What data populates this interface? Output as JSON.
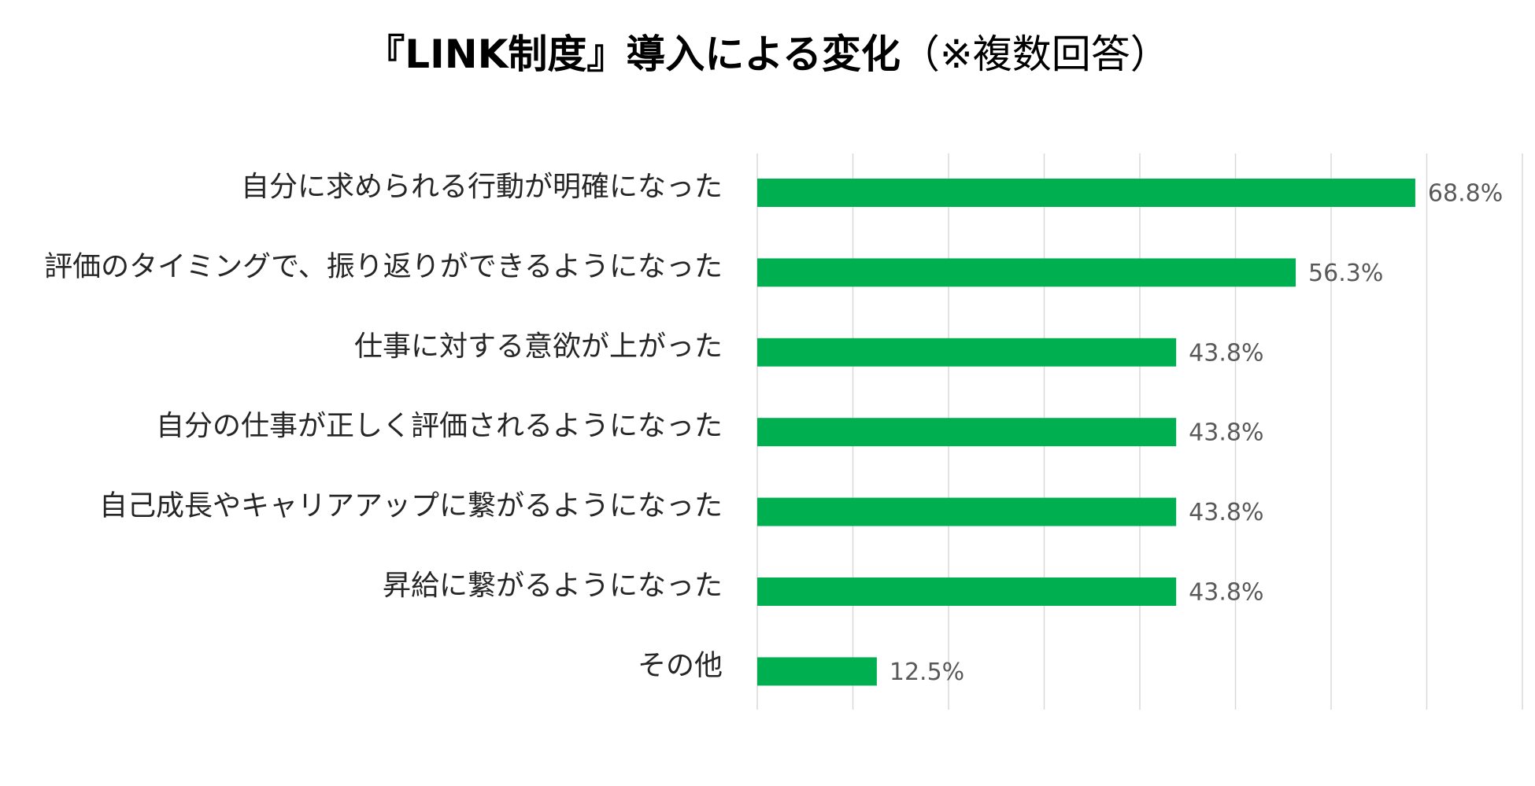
{
  "chart_data": {
    "type": "bar",
    "orientation": "horizontal",
    "title": "『LINK制度』導入による変化",
    "title_note": "（※複数回答）",
    "categories": [
      "自分に求められる行動が明確になった",
      "評価のタイミングで、振り返りができるようになった",
      "仕事に対する意欲が上がった",
      "自分の仕事が正しく評価されるようになった",
      "自己成長やキャリアアップに繋がるようになった",
      "昇給に繋がるようになった",
      "その他"
    ],
    "values": [
      68.8,
      56.3,
      43.8,
      43.8,
      43.8,
      43.8,
      12.5
    ],
    "value_labels": [
      "68.8%",
      "56.3%",
      "43.8%",
      "43.8%",
      "43.8%",
      "43.8%",
      "12.5%"
    ],
    "xlim": [
      0,
      80
    ],
    "grid": true,
    "bar_color": "#00B050",
    "grid_color": "#D9D9D9"
  }
}
